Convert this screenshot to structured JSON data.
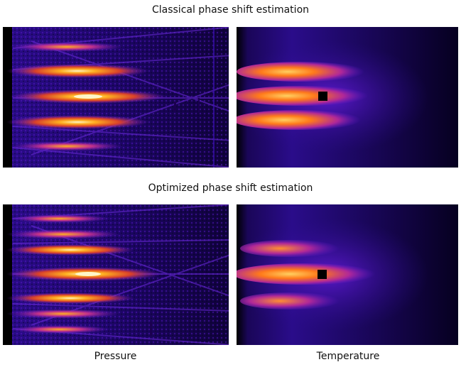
{
  "figure": {
    "top_title": "Classical phase shift estimation",
    "middle_title": "Optimized phase shift estimation",
    "label_left": "Pressure",
    "label_right": "Temperature"
  },
  "colors": {
    "background": "#ffffff",
    "colormap": [
      "#000000",
      "#14004a",
      "#3a10b0",
      "#7a20d8",
      "#c0308c",
      "#ff5a1a",
      "#ffb020",
      "#fff6c8"
    ]
  }
}
